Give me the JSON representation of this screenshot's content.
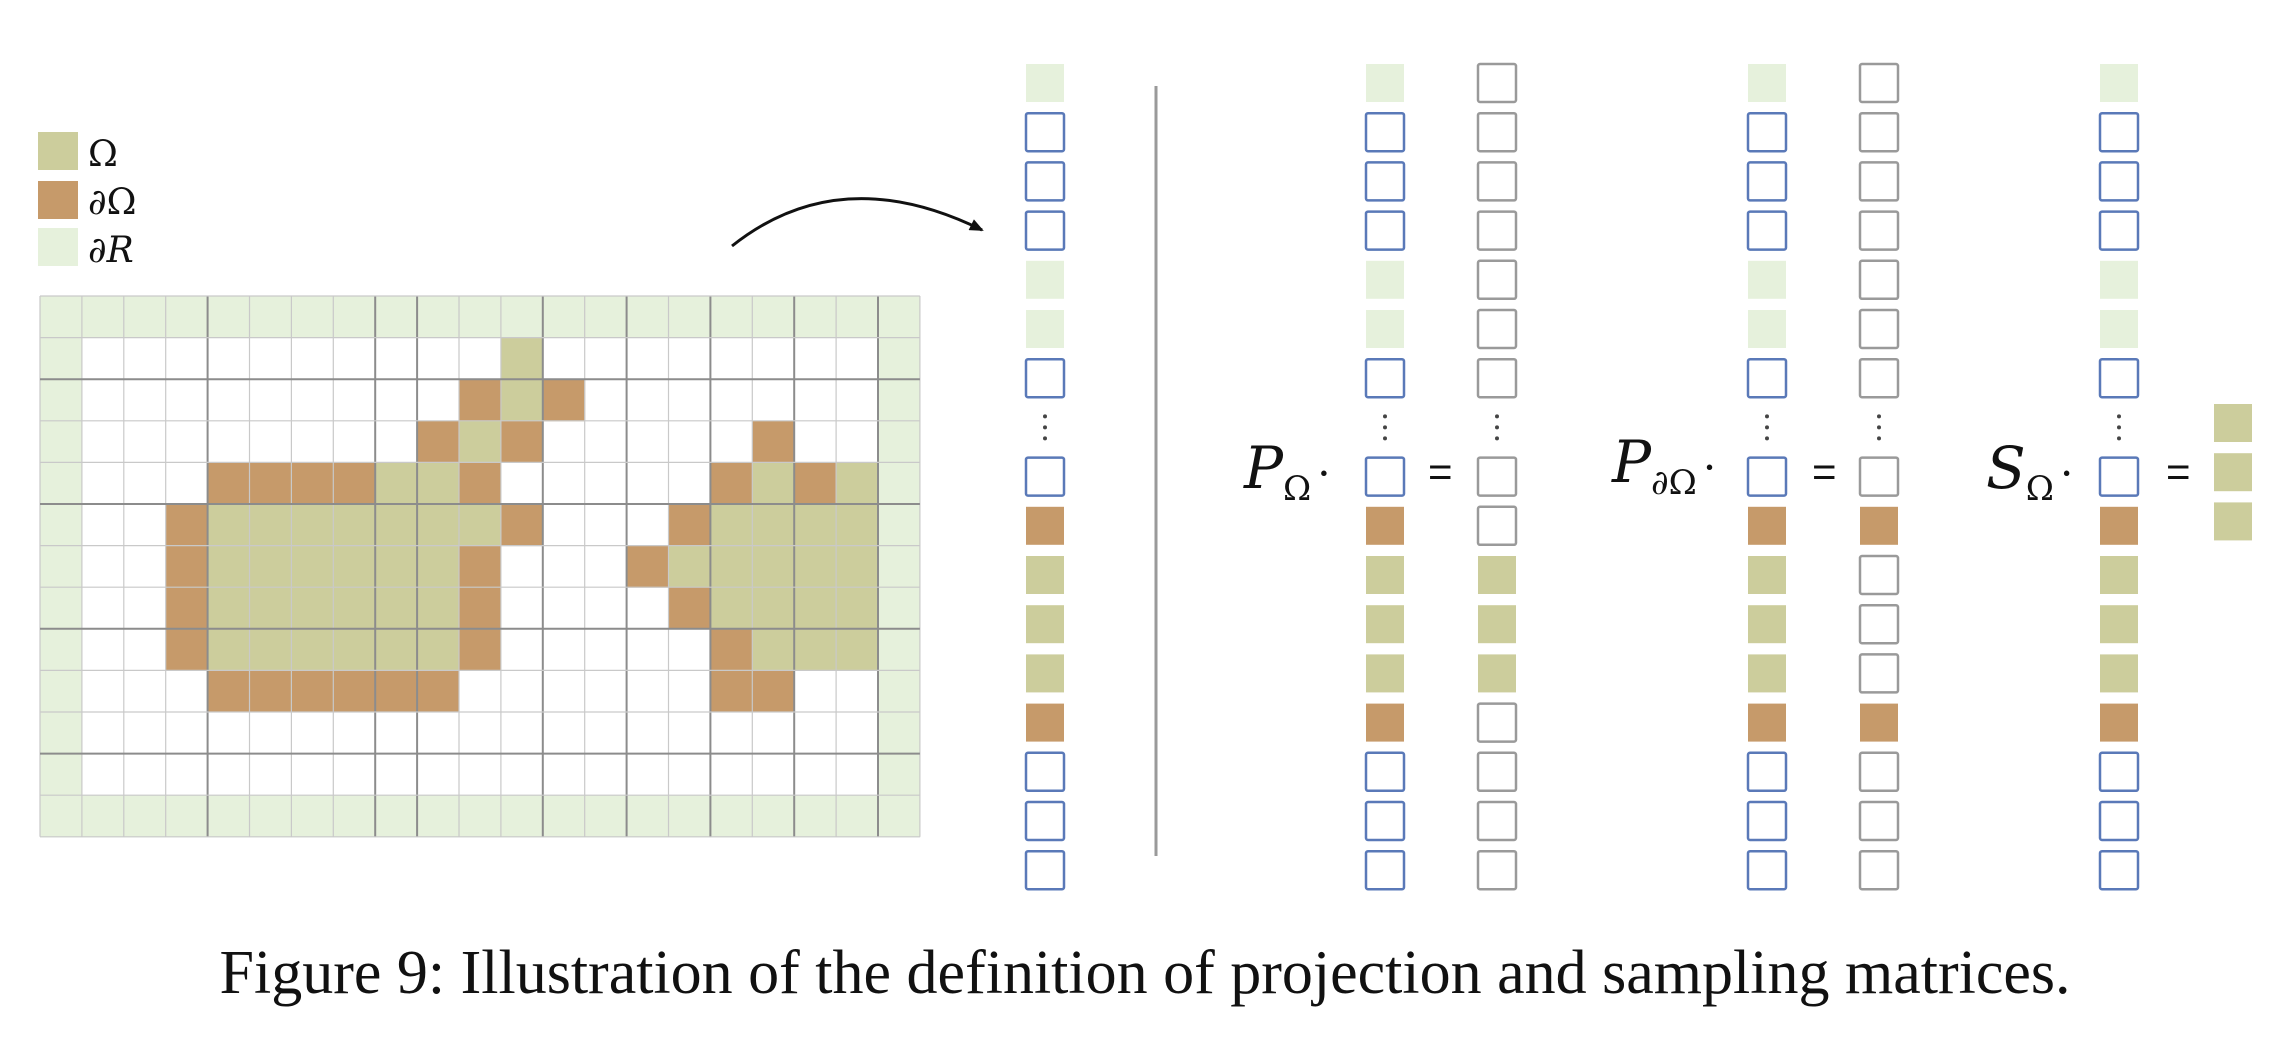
{
  "legend": [
    {
      "label": "Ω",
      "role": "interior"
    },
    {
      "label": "∂Ω",
      "role": "boundary"
    },
    {
      "label": "∂R",
      "role": "region-boundary"
    }
  ],
  "colors": {
    "interior": "#cccd9c",
    "boundary": "#c69a6a",
    "region_boundary": "#e6f1dc",
    "empty_outline": "#5a79b8",
    "zero_outline": "#9a9a9a",
    "grid_thin": "#c9c9c9",
    "grid_thick": "#8c8c8c"
  },
  "grid": {
    "columns": 21,
    "rows": 13,
    "cells": [
      "GGGGGGGGGGGGGGGGGGGGG",
      "G..........I........G",
      "G.........BIB.......G",
      "G........BIB.....B..G",
      "G...BBBBIIB.....BIBIG",
      "G..BIIIIIIIB...BIIIIG",
      "G..BIIIIIIB...BIIIIIG",
      "G..BIIIIIIB....BIIIIG",
      "G..BIIIIIIB.....BIIIG",
      "G...BBBBBB......BB..G",
      "G...................G",
      "G...................G",
      "GGGGGGGGGGGGGGGGGGGGG"
    ]
  },
  "vectors": {
    "input": [
      "G",
      "E",
      "E",
      "E",
      "G",
      "G",
      "E",
      "dots",
      "E",
      "B",
      "I",
      "I",
      "I",
      "B",
      "E",
      "E",
      "E"
    ],
    "p_omega_result": [
      "Z",
      "Z",
      "Z",
      "Z",
      "Z",
      "Z",
      "Z",
      "dots",
      "Z",
      "Z",
      "I",
      "I",
      "I",
      "Z",
      "Z",
      "Z",
      "Z"
    ],
    "p_boundary_result": [
      "Z",
      "Z",
      "Z",
      "Z",
      "Z",
      "Z",
      "Z",
      "dots",
      "Z",
      "B",
      "Z",
      "Z",
      "Z",
      "B",
      "Z",
      "Z",
      "Z"
    ],
    "s_omega_result": [
      "I",
      "I",
      "I"
    ]
  },
  "equations": [
    {
      "operator": "P",
      "subscript": "Ω",
      "dot": "·",
      "equals": "="
    },
    {
      "operator": "P",
      "subscript": "∂Ω",
      "dot": "·",
      "equals": "="
    },
    {
      "operator": "S",
      "subscript": "Ω",
      "dot": "·",
      "equals": "="
    }
  ],
  "caption": "Figure 9: Illustration of the definition of projection and sampling matrices."
}
